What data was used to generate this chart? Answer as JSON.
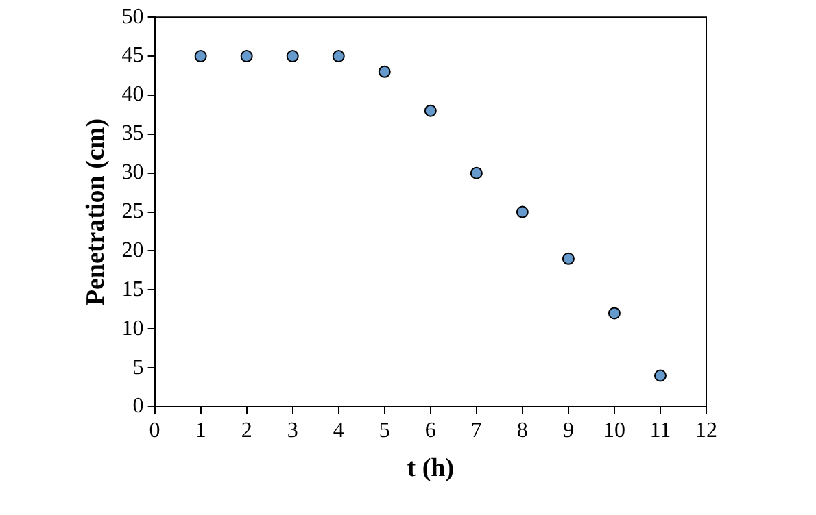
{
  "chart_data": {
    "type": "scatter",
    "xlabel": "t (h)",
    "ylabel": "Penetration (cm)",
    "x": [
      1,
      2,
      3,
      4,
      5,
      6,
      7,
      8,
      9,
      10,
      11
    ],
    "series": [
      {
        "color": "#6699cc",
        "values": [
          45,
          45,
          45,
          45,
          43,
          38,
          30,
          25,
          19,
          12,
          4
        ]
      }
    ],
    "xlim": [
      0,
      12
    ],
    "xticks": [
      0,
      1,
      2,
      3,
      4,
      5,
      6,
      7,
      8,
      9,
      10,
      11,
      12
    ],
    "ylim": [
      0,
      50
    ],
    "yticks": [
      0,
      5,
      10,
      15,
      20,
      25,
      30,
      35,
      40,
      45,
      50
    ],
    "grid": false,
    "legend": false,
    "marker": "circle"
  }
}
